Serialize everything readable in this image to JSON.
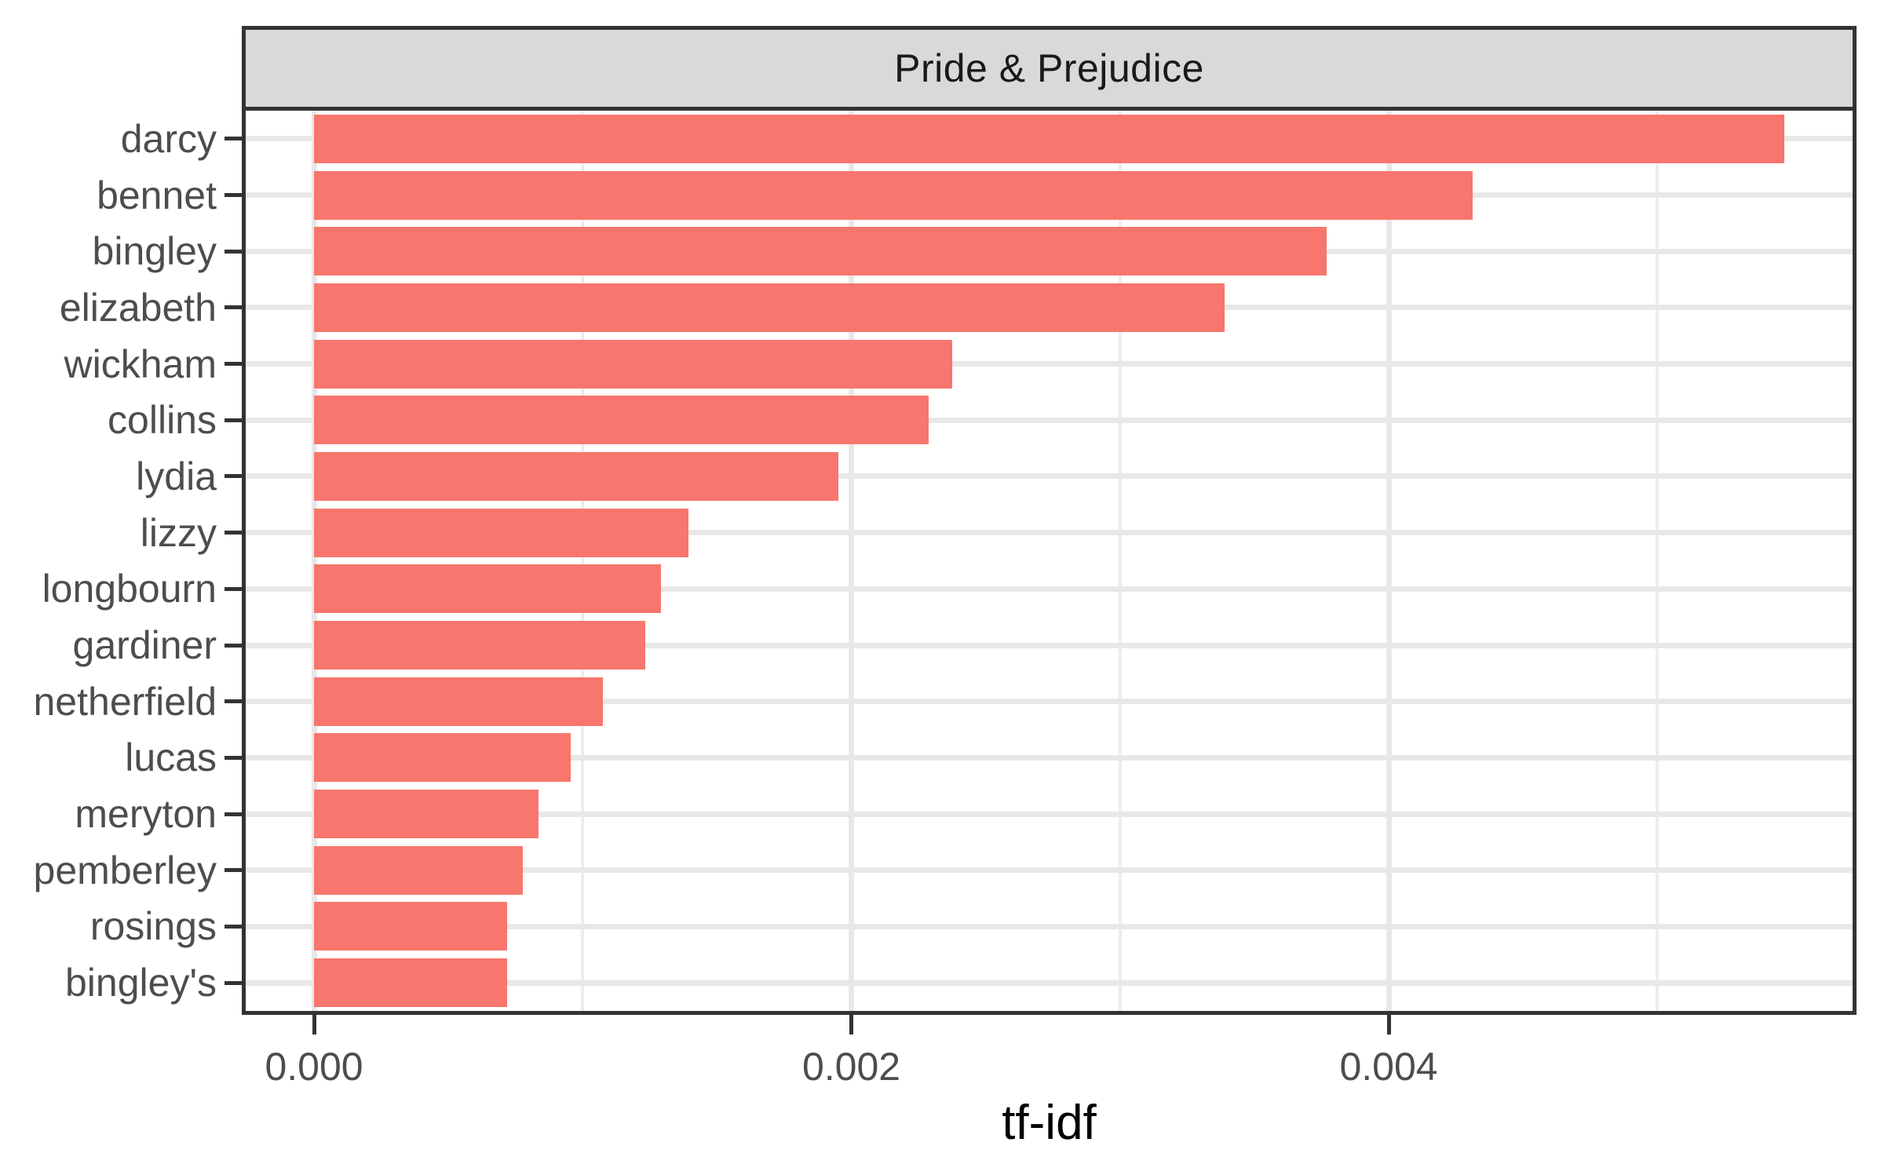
{
  "chart_data": {
    "type": "bar",
    "orientation": "horizontal",
    "title": "Pride & Prejudice",
    "xlabel": "tf-idf",
    "ylabel": "",
    "categories": [
      "darcy",
      "bennet",
      "bingley",
      "elizabeth",
      "wickham",
      "collins",
      "lydia",
      "lizzy",
      "longbourn",
      "gardiner",
      "netherfield",
      "lucas",
      "meryton",
      "pemberley",
      "rosings",
      "bingley's"
    ],
    "values": [
      0.005472,
      0.004313,
      0.003769,
      0.00339,
      0.002376,
      0.002288,
      0.001952,
      0.001394,
      0.001292,
      0.001233,
      0.001075,
      0.000956,
      0.000836,
      0.000777,
      0.000719,
      0.00072
    ],
    "x_ticks": [
      0.0,
      0.002,
      0.004
    ],
    "x_tick_labels": [
      "0.000",
      "0.002",
      "0.004"
    ],
    "x_minor_ticks": [
      0.001,
      0.003,
      0.005
    ],
    "xlim": [
      -0.00025,
      0.00573
    ],
    "grid": "major+minor vertical, major horizontal",
    "legend": "none",
    "bar_fill": "#F8766D"
  },
  "colors": {
    "bar_fill": "#F8766D",
    "strip_background": "#D9D9D9",
    "panel_border": "#333333",
    "axis_text": "#4D4D4D",
    "title_text": "#1A1A1A",
    "grid_major": "#E8E8E8",
    "grid_minor": "#EDEDED",
    "background": "#FFFFFF"
  }
}
